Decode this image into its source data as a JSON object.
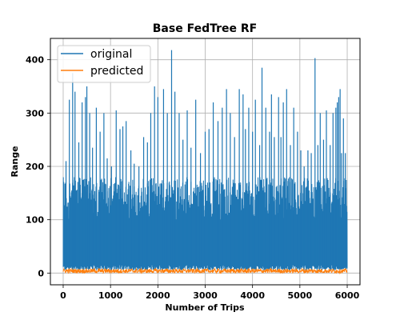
{
  "chart_data": {
    "type": "line",
    "title": "Base FedTree RF",
    "xlabel": "Number of Trips",
    "ylabel": "Range",
    "xlim": [
      -270,
      6270
    ],
    "ylim": [
      -22,
      440
    ],
    "xticks": [
      0,
      1000,
      2000,
      3000,
      4000,
      5000,
      6000
    ],
    "yticks": [
      0,
      100,
      200,
      300,
      400
    ],
    "xtick_labels": [
      "0",
      "1000",
      "2000",
      "3000",
      "4000",
      "5000",
      "6000"
    ],
    "ytick_labels": [
      "0",
      "100",
      "200",
      "300",
      "400"
    ],
    "grid": true,
    "legend_position": "top-left",
    "x_range": [
      0,
      6000
    ],
    "series": [
      {
        "name": "original",
        "color": "#1f77b4",
        "typical_range": [
          5,
          150
        ],
        "peaks": [
          [
            60,
            210
          ],
          [
            130,
            325
          ],
          [
            200,
            375
          ],
          [
            250,
            340
          ],
          [
            330,
            245
          ],
          [
            400,
            320
          ],
          [
            470,
            330
          ],
          [
            500,
            350
          ],
          [
            560,
            300
          ],
          [
            620,
            235
          ],
          [
            700,
            310
          ],
          [
            780,
            265
          ],
          [
            860,
            300
          ],
          [
            930,
            215
          ],
          [
            1020,
            200
          ],
          [
            1120,
            305
          ],
          [
            1200,
            270
          ],
          [
            1260,
            275
          ],
          [
            1330,
            285
          ],
          [
            1430,
            230
          ],
          [
            1500,
            205
          ],
          [
            1600,
            200
          ],
          [
            1700,
            255
          ],
          [
            1780,
            245
          ],
          [
            1850,
            300
          ],
          [
            1930,
            350
          ],
          [
            2000,
            330
          ],
          [
            2120,
            345
          ],
          [
            2200,
            300
          ],
          [
            2290,
            418
          ],
          [
            2360,
            340
          ],
          [
            2450,
            300
          ],
          [
            2530,
            250
          ],
          [
            2620,
            305
          ],
          [
            2700,
            235
          ],
          [
            2800,
            325
          ],
          [
            2900,
            225
          ],
          [
            3000,
            265
          ],
          [
            3080,
            270
          ],
          [
            3170,
            320
          ],
          [
            3270,
            285
          ],
          [
            3360,
            310
          ],
          [
            3450,
            345
          ],
          [
            3530,
            300
          ],
          [
            3620,
            255
          ],
          [
            3720,
            345
          ],
          [
            3800,
            335
          ],
          [
            3850,
            270
          ],
          [
            3920,
            310
          ],
          [
            4000,
            265
          ],
          [
            4060,
            325
          ],
          [
            4150,
            240
          ],
          [
            4200,
            385
          ],
          [
            4280,
            310
          ],
          [
            4360,
            265
          ],
          [
            4400,
            335
          ],
          [
            4460,
            255
          ],
          [
            4550,
            330
          ],
          [
            4600,
            255
          ],
          [
            4650,
            320
          ],
          [
            4720,
            345
          ],
          [
            4800,
            240
          ],
          [
            4870,
            310
          ],
          [
            4950,
            265
          ],
          [
            5020,
            230
          ],
          [
            5090,
            200
          ],
          [
            5170,
            230
          ],
          [
            5240,
            225
          ],
          [
            5320,
            403
          ],
          [
            5380,
            240
          ],
          [
            5430,
            300
          ],
          [
            5500,
            250
          ],
          [
            5560,
            305
          ],
          [
            5640,
            240
          ],
          [
            5700,
            300
          ],
          [
            5760,
            310
          ],
          [
            5790,
            320
          ],
          [
            5820,
            330
          ],
          [
            5850,
            345
          ],
          [
            5880,
            225
          ],
          [
            5920,
            290
          ],
          [
            5960,
            225
          ]
        ]
      },
      {
        "name": "predicted",
        "color": "#ff7f0e",
        "typical_range": [
          0,
          8
        ]
      }
    ]
  }
}
